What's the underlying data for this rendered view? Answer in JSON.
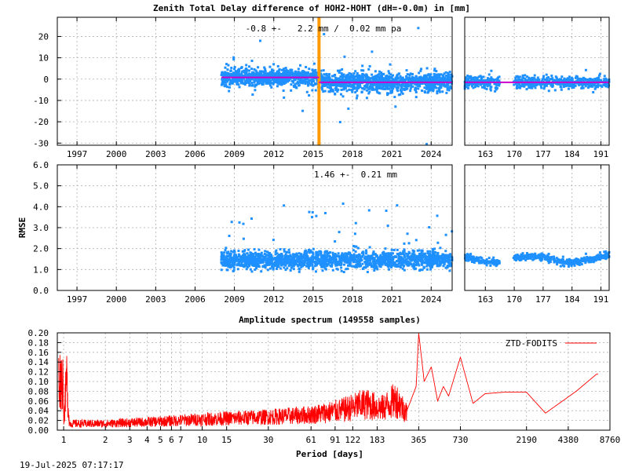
{
  "chart_data": [
    {
      "type": "scatter",
      "title": "Zenith Total Delay difference of HOH2-HOHT (dH=-0.0m) in [mm]",
      "annotation": "-0.8 +-   2.2 mm /  0.02 mm pa",
      "xlim": [
        1995.5,
        2025.6
      ],
      "ylim": [
        -31,
        29
      ],
      "y_ticks": [
        20,
        10,
        0,
        -10,
        -20,
        -30
      ],
      "x_ticks": [
        1997,
        2000,
        2003,
        2006,
        2009,
        2012,
        2015,
        2018,
        2021,
        2024
      ],
      "x_tick_labels": [
        "1997",
        "2000",
        "2003",
        "2006",
        "2009",
        "2012",
        "2015",
        "2018",
        "2021",
        "2024"
      ],
      "data_start": 2008.0,
      "data_end": 2025.6,
      "point_color": "#1e90ff",
      "break_epoch": 2015.45,
      "break_color": "#ff9900",
      "mean_segments": [
        {
          "x": [
            2008.0,
            2015.45
          ],
          "y": 0.8
        },
        {
          "x": [
            2015.45,
            2025.6
          ],
          "y": -1.5
        }
      ],
      "mean_color": "#cc00cc",
      "approx_spread": {
        "before_break": 3.5,
        "after_break": 4.0
      }
    },
    {
      "type": "scatter",
      "xlim": [
        158,
        193
      ],
      "ylim": [
        -31,
        29
      ],
      "x_ticks": [
        163,
        170,
        177,
        184,
        191
      ],
      "x_tick_labels": [
        "163",
        "170",
        "177",
        "184",
        "191"
      ],
      "data_start": 158,
      "data_end": 193,
      "gaps": [
        [
          166.5,
          169.8
        ]
      ],
      "mean_y": -1.5,
      "approx_spread": 2.5
    },
    {
      "type": "scatter",
      "ylabel": "RMSE",
      "annotation": "1.46 +-  0.21 mm",
      "xlim": [
        1995.5,
        2025.6
      ],
      "ylim": [
        0,
        6
      ],
      "y_ticks": [
        6,
        5,
        4,
        3,
        2,
        1,
        0
      ],
      "y_tick_labels": [
        "6.0",
        "5.0",
        "4.0",
        "3.0",
        "2.0",
        "1.0",
        "0.0"
      ],
      "x_ticks": [
        1997,
        2000,
        2003,
        2006,
        2009,
        2012,
        2015,
        2018,
        2021,
        2024
      ],
      "x_tick_labels": [
        "1997",
        "2000",
        "2003",
        "2006",
        "2009",
        "2012",
        "2015",
        "2018",
        "2021",
        "2024"
      ],
      "data_start": 2008.0,
      "data_end": 2025.6,
      "approx_mean": 1.46,
      "approx_std": 0.21
    },
    {
      "type": "scatter",
      "xlim": [
        158,
        193
      ],
      "ylim": [
        0,
        6
      ],
      "x_ticks": [
        163,
        170,
        177,
        184,
        191
      ],
      "x_tick_labels": [
        "163",
        "170",
        "177",
        "184",
        "191"
      ],
      "gaps": [
        [
          166.5,
          169.8
        ]
      ],
      "approx_mean": 1.5
    },
    {
      "type": "line",
      "title": "Amplitude spectrum (149558 samples)",
      "xlabel": "Period [days]",
      "xscale": "log",
      "xlim": [
        0.9,
        8760
      ],
      "ylim": [
        0,
        0.2
      ],
      "x_ticks": [
        1,
        2,
        3,
        4,
        5,
        6,
        7,
        10,
        15,
        30,
        61,
        91,
        122,
        183,
        365,
        730,
        2190,
        4380,
        8760
      ],
      "x_tick_labels": [
        "1",
        "2",
        "3",
        "4",
        "5",
        "6",
        "7",
        "10",
        "15",
        "30",
        "61",
        "91",
        "122",
        "183",
        "365",
        "730",
        "2190",
        "4380",
        "8760"
      ],
      "y_ticks": [
        0.2,
        0.18,
        0.16,
        0.14,
        0.12,
        0.1,
        0.08,
        0.06,
        0.04,
        0.02,
        0
      ],
      "y_tick_labels": [
        "0.20",
        "0.18",
        "0.16",
        "0.14",
        "0.12",
        "0.10",
        "0.08",
        "0.06",
        "0.04",
        "0.02",
        "0.00"
      ],
      "legend": "top-right",
      "series": [
        {
          "name": "ZTD-FODITS",
          "color": "#ff0000",
          "x": [
            1.0,
            1.05,
            1.1,
            2,
            5,
            10,
            30,
            60,
            100,
            150,
            200,
            250,
            300,
            350,
            365,
            400,
            450,
            500,
            550,
            600,
            730,
            900,
            1100,
            1500,
            2190,
            3000,
            5000,
            7000
          ],
          "y": [
            0.01,
            0.12,
            0.015,
            0.015,
            0.02,
            0.025,
            0.03,
            0.035,
            0.045,
            0.06,
            0.05,
            0.07,
            0.04,
            0.09,
            0.2,
            0.1,
            0.13,
            0.06,
            0.09,
            0.07,
            0.15,
            0.055,
            0.075,
            0.078,
            0.078,
            0.035,
            0.08,
            0.115
          ]
        }
      ]
    }
  ],
  "footer": {
    "timestamp": "19-Jul-2025 07:17:17"
  }
}
